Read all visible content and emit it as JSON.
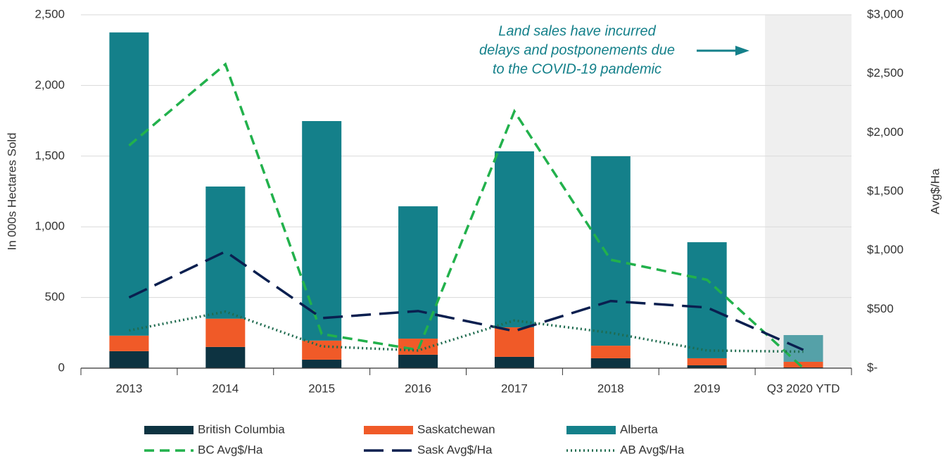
{
  "chart_data": {
    "type": "bar",
    "categories": [
      "2013",
      "2014",
      "2015",
      "2016",
      "2017",
      "2018",
      "2019",
      "Q3 2020 YTD"
    ],
    "series": [
      {
        "name": "British Columbia",
        "type": "bar",
        "color": "#0d3341",
        "values": [
          120,
          150,
          60,
          95,
          80,
          70,
          20,
          5
        ]
      },
      {
        "name": "Saskatchewan",
        "type": "bar",
        "color": "#f05a28",
        "values": [
          110,
          200,
          135,
          114,
          209,
          89,
          50,
          40
        ]
      },
      {
        "name": "Alberta",
        "type": "bar",
        "color": "#14808a",
        "values": [
          2145,
          935,
          1553,
          936,
          1245,
          1340,
          821,
          189
        ]
      },
      {
        "name": "BC Avg$/Ha",
        "type": "line",
        "axis": "y2",
        "color": "#22b14c",
        "dash": "14,8",
        "values": [
          1890,
          2580,
          290,
          155,
          2180,
          920,
          750,
          0
        ]
      },
      {
        "name": "Sask Avg$/Ha",
        "type": "line",
        "axis": "y2",
        "color": "#0a1f4f",
        "dash": "28,12",
        "values": [
          600,
          990,
          425,
          485,
          315,
          570,
          515,
          155
        ]
      },
      {
        "name": "AB Avg$/Ha",
        "type": "line",
        "axis": "y2",
        "color": "#1f6b4f",
        "dash": "2,4",
        "values": [
          320,
          480,
          185,
          150,
          405,
          300,
          150,
          140
        ]
      }
    ],
    "y_label": "In 000s Hectares Sold",
    "y2_label": "Avg$/Ha",
    "ylim": [
      0,
      2500
    ],
    "yticks": [
      0,
      500,
      {
        "value": 1000,
        "label": "1,000"
      },
      {
        "value": 1500,
        "label": "1,500"
      },
      {
        "value": 2000,
        "label": "2,000"
      },
      {
        "value": 2500,
        "label": "2,500"
      }
    ],
    "y2lim": [
      0,
      3000
    ],
    "y2ticks": [
      {
        "value": 0,
        "label": "$-"
      },
      {
        "value": 500,
        "label": "$500"
      },
      {
        "value": 1000,
        "label": "$1,000"
      },
      {
        "value": 1500,
        "label": "$1,500"
      },
      {
        "value": 2000,
        "label": "$2,000"
      },
      {
        "value": 2500,
        "label": "$2,500"
      },
      {
        "value": 3000,
        "label": "$3,000"
      }
    ],
    "grid": true,
    "highlight_category": 7,
    "annotation": [
      "Land sales have incurred",
      "delays and postponements due",
      "to the COVID-19 pandemic"
    ],
    "legend": "bottom"
  }
}
